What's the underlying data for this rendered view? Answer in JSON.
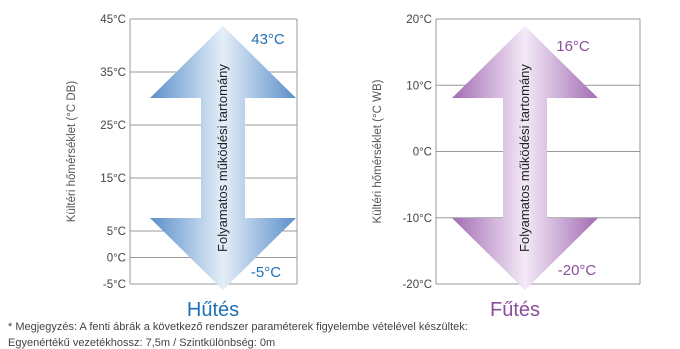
{
  "panels": [
    {
      "id": "cooling",
      "title": "Hűtés",
      "y_axis_label": "Kültéri hőmérséklet (°C DB)",
      "ticks": [
        {
          "value": 45,
          "label": "45°C"
        },
        {
          "value": 35,
          "label": "35°C"
        },
        {
          "value": 25,
          "label": "25°C"
        },
        {
          "value": 15,
          "label": "15°C"
        },
        {
          "value": 5,
          "label": "5°C"
        },
        {
          "value": 0,
          "label": "0°C"
        },
        {
          "value": -5,
          "label": "-5°C"
        }
      ],
      "arrow_label": "Folyamatos működési tartomány",
      "max_label": "43°C",
      "min_label": "-5°C",
      "color": "#4a86c5",
      "color_light": "#dbe8f5",
      "title_color": "#1f6fb2"
    },
    {
      "id": "heating",
      "title": "Fűtés",
      "y_axis_label": "Kültéri hőmérséklet (°C WB)",
      "ticks": [
        {
          "value": 20,
          "label": "20°C"
        },
        {
          "value": 10,
          "label": "10°C"
        },
        {
          "value": 0,
          "label": "0°C"
        },
        {
          "value": -10,
          "label": "-10°C"
        },
        {
          "value": -20,
          "label": "-20°C"
        }
      ],
      "arrow_label": "Folyamatos működési tartomány",
      "max_label": "16°C",
      "min_label": "-20°C",
      "color": "#9b64ad",
      "color_light": "#efe3f3",
      "title_color": "#8a4d9e"
    }
  ],
  "notes": {
    "line1": "* Megjegyzés: A fenti ábrák a következő rendszer paraméterek figyelembe vételével készültek:",
    "line2": "Egyenértékű vezetékhossz: 7,5m / Szintkülönbség: 0m"
  }
}
